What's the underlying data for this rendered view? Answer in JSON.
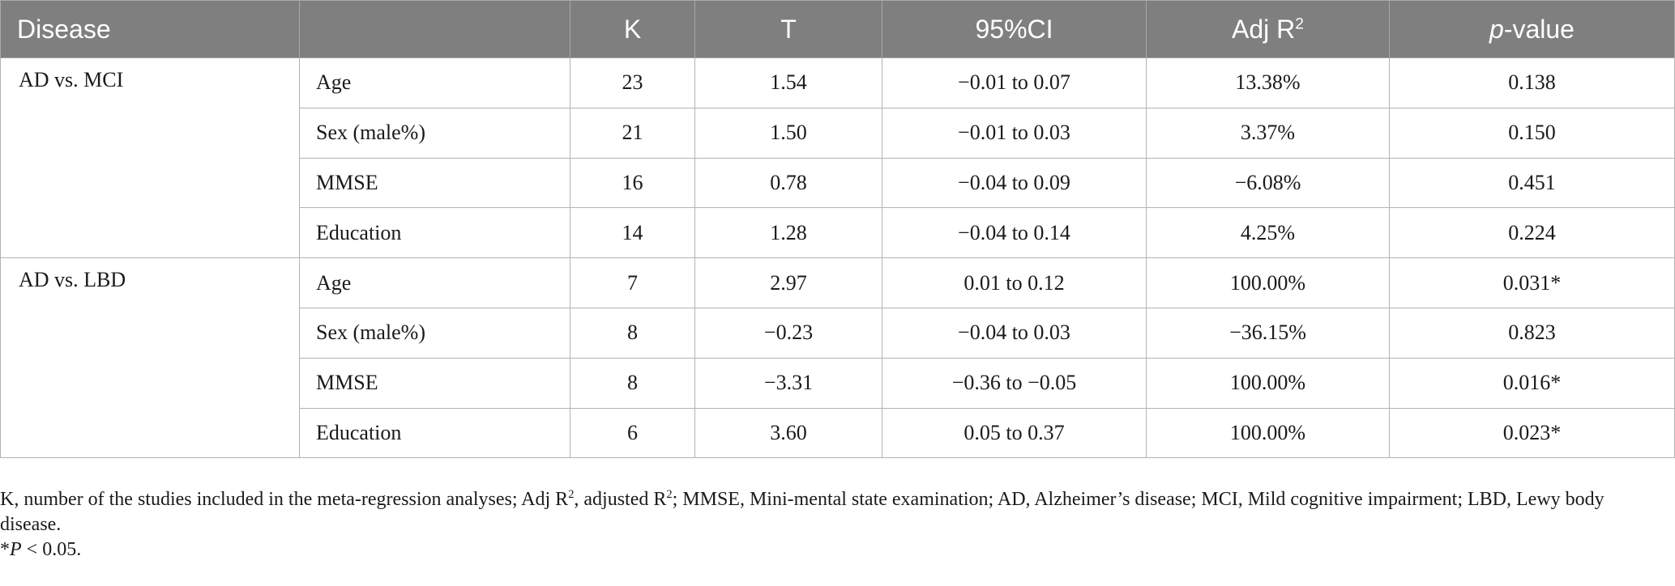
{
  "table": {
    "headers": {
      "disease": "Disease",
      "covariate": "",
      "k": "K",
      "t": "T",
      "ci": "95%CI",
      "adj_r_base": "Adj R",
      "adj_r_sup": "2",
      "p_italic": "p",
      "p_rest": "-value"
    },
    "groups": [
      {
        "disease": "AD vs. MCI",
        "rows": [
          {
            "covariate": "Age",
            "k": "23",
            "t": "1.54",
            "ci": "−0.01 to 0.07",
            "adj_r2": "13.38%",
            "p": "0.138"
          },
          {
            "covariate": "Sex (male%)",
            "k": "21",
            "t": "1.50",
            "ci": "−0.01 to 0.03",
            "adj_r2": "3.37%",
            "p": "0.150"
          },
          {
            "covariate": "MMSE",
            "k": "16",
            "t": "0.78",
            "ci": "−0.04 to 0.09",
            "adj_r2": "−6.08%",
            "p": "0.451"
          },
          {
            "covariate": "Education",
            "k": "14",
            "t": "1.28",
            "ci": "−0.04 to 0.14",
            "adj_r2": "4.25%",
            "p": "0.224"
          }
        ]
      },
      {
        "disease": "AD vs. LBD",
        "rows": [
          {
            "covariate": "Age",
            "k": "7",
            "t": "2.97",
            "ci": "0.01 to 0.12",
            "adj_r2": "100.00%",
            "p": "0.031*"
          },
          {
            "covariate": "Sex (male%)",
            "k": "8",
            "t": "−0.23",
            "ci": "−0.04 to 0.03",
            "adj_r2": "−36.15%",
            "p": "0.823"
          },
          {
            "covariate": "MMSE",
            "k": "8",
            "t": "−3.31",
            "ci": "−0.36 to −0.05",
            "adj_r2": "100.00%",
            "p": "0.016*"
          },
          {
            "covariate": "Education",
            "k": "6",
            "t": "3.60",
            "ci": "0.05 to 0.37",
            "adj_r2": "100.00%",
            "p": "0.023*"
          }
        ]
      }
    ]
  },
  "footnote": {
    "seg1": "K, number of the studies included in the meta-regression analyses; Adj R",
    "sup1": "2",
    "seg2": ", adjusted R",
    "sup2": "2",
    "seg3": "; MMSE, Mini-mental state examination; AD, Alzheimer’s disease; MCI, Mild cognitive impairment; LBD, Lewy body disease.",
    "sig_star": "*",
    "sig_p": "P",
    "sig_rest": " < 0.05."
  }
}
